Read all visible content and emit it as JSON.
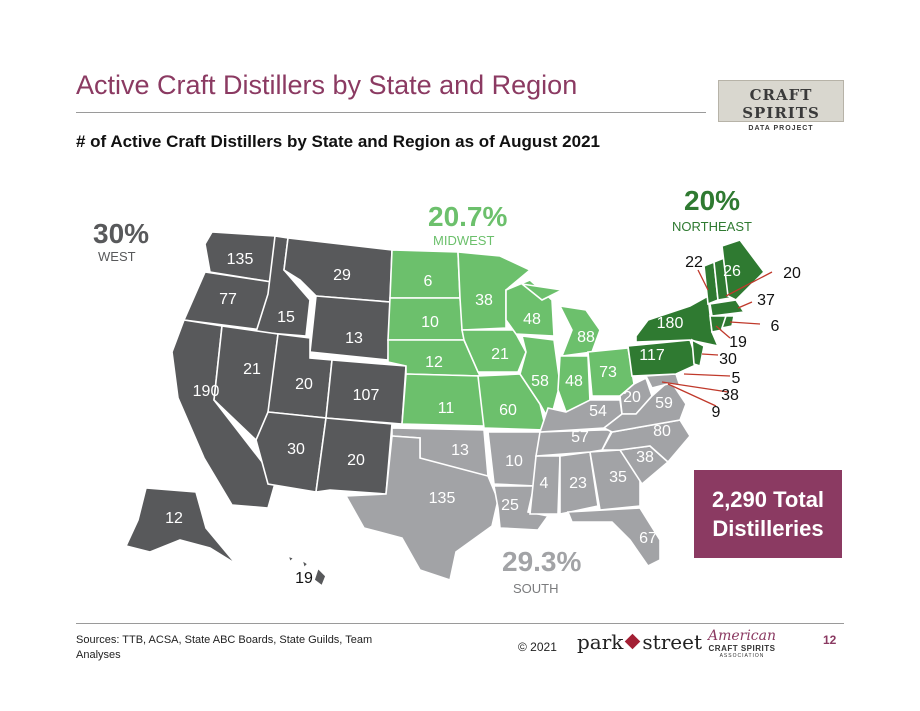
{
  "title": "Active Craft Distillers by State and Region",
  "subtitle": "# of Active Craft Distillers by State and Region as of August 2021",
  "logo": {
    "line1": "CRAFT SPIRITS",
    "line2": "DATA PROJECT"
  },
  "regions": {
    "west": {
      "pct": "30%",
      "label": "WEST",
      "color": "#58595b"
    },
    "midwest": {
      "pct": "20.7%",
      "label": "MIDWEST",
      "color": "#6cc06c"
    },
    "northeast": {
      "pct": "20%",
      "label": "NORTHEAST",
      "color": "#2f7a31"
    },
    "south": {
      "pct": "29.3%",
      "label": "SOUTH",
      "color": "#a2a3a6"
    }
  },
  "state_counts": {
    "WA": "135",
    "OR": "77",
    "CA": "190",
    "ID": "15",
    "NV": "21",
    "MT": "29",
    "WY": "13",
    "UT": "20",
    "CO": "107",
    "AZ": "30",
    "NM": "20",
    "AK": "12",
    "HI": "19",
    "ND": "6",
    "SD": "10",
    "NE": "12",
    "KS": "11",
    "MN": "38",
    "IA": "21",
    "MO": "60",
    "WI": "48",
    "IL": "58",
    "MI": "88",
    "IN": "48",
    "OH": "73",
    "OK": "13",
    "TX": "135",
    "AR": "10",
    "LA": "25",
    "MS": "4",
    "AL": "23",
    "GA": "35",
    "FL": "67",
    "SC": "38",
    "NC": "80",
    "TN": "57",
    "KY": "54",
    "WV": "20",
    "VA": "59",
    "MD": "9",
    "DE": "5",
    "DC": "38",
    "NY": "180",
    "PA": "117",
    "ME": "26",
    "VT": "22",
    "NH": "20",
    "MA": "37",
    "RI": "6",
    "CT": "19",
    "NJ": "30"
  },
  "total": {
    "line1": "2,290 Total",
    "line2": "Distilleries"
  },
  "footer": {
    "sources": "Sources: TTB, ACSA,   State ABC Boards, State Guilds, Team Analyses",
    "copyright": "© 2021",
    "parkstreet_left": "park",
    "parkstreet_right": "street",
    "acsa_line1": "American",
    "acsa_line2": "CRAFT SPIRITS",
    "acsa_line3": "ASSOCIATION",
    "page": "12"
  }
}
